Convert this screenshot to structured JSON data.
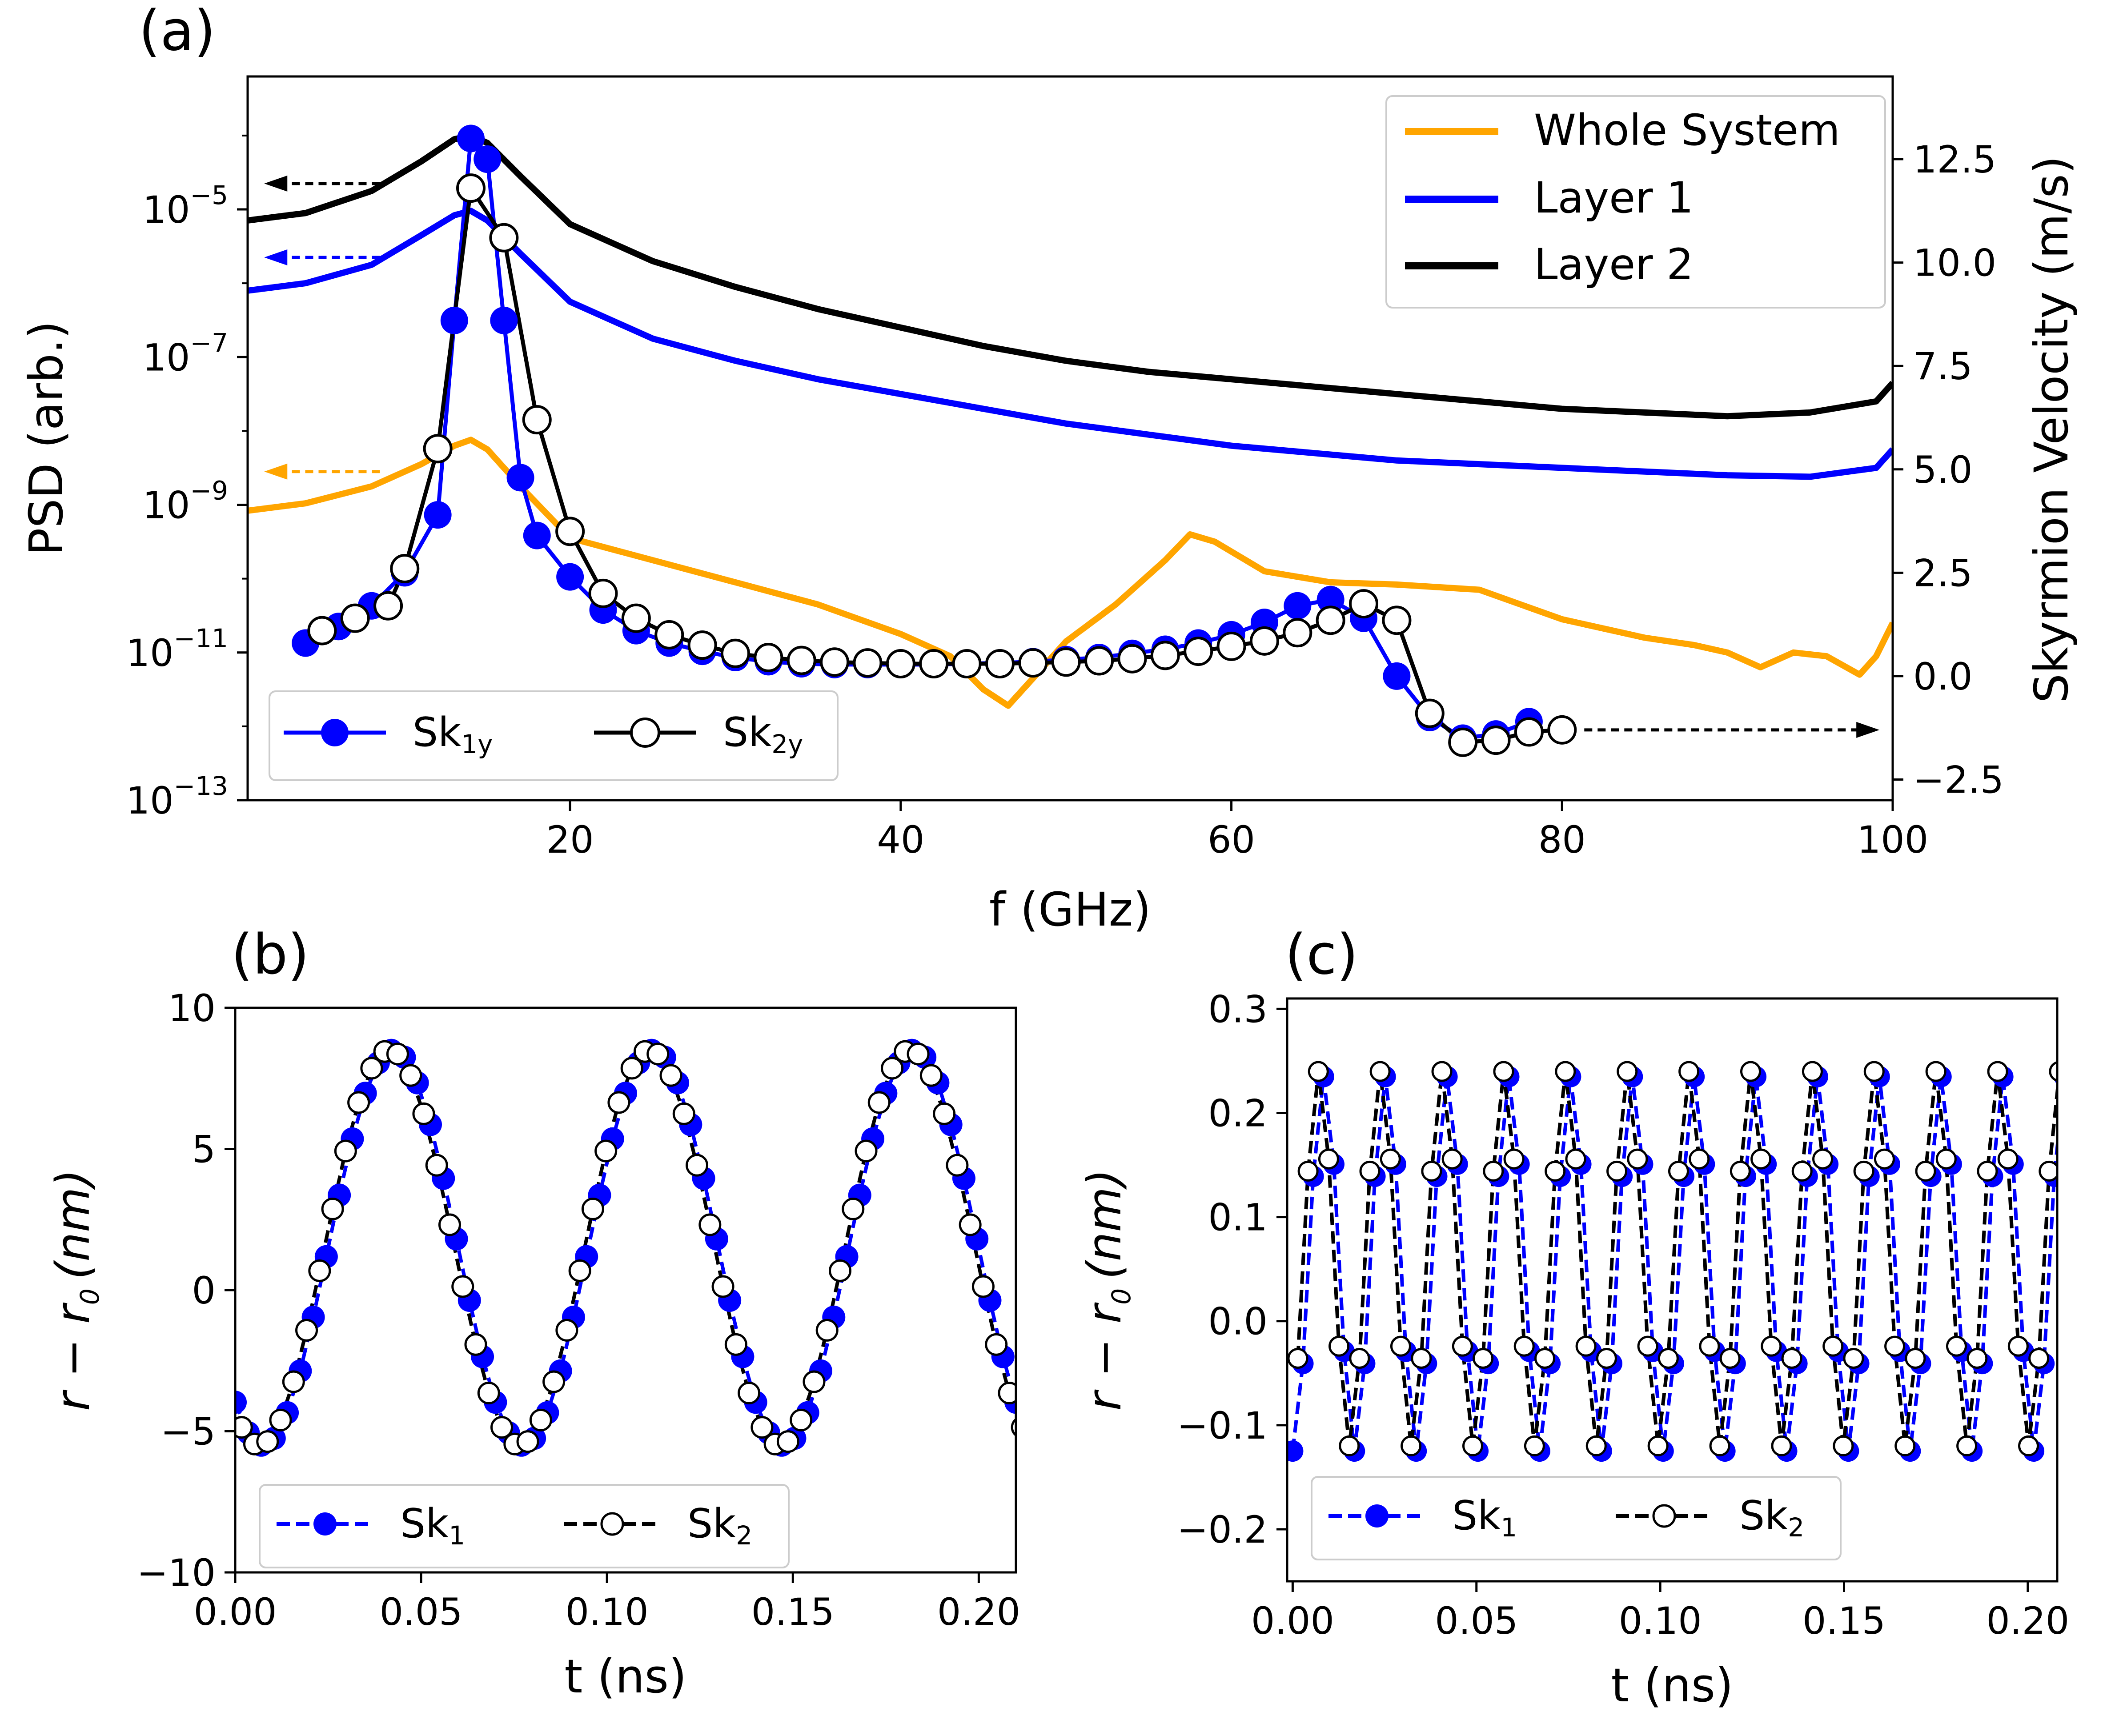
{
  "chart_data": [
    {
      "id": "a",
      "panel_label": "(a)",
      "type": "line",
      "xlabel": "f (GHz)",
      "ylabel_left": "PSD (arb.)",
      "ylabel_right": "Skyrmion Velocity (m/s)",
      "xlim": [
        0.5,
        100
      ],
      "ylim_left_log10": [
        -13,
        -3.2
      ],
      "ylim_right": [
        -3.0,
        14.5
      ],
      "x_ticks": [
        "20",
        "40",
        "60",
        "80",
        "100"
      ],
      "x_tick_values": [
        20,
        40,
        60,
        80,
        100
      ],
      "y_left_ticks": [
        "10",
        "10",
        "10",
        "10",
        "10"
      ],
      "y_left_tick_exponents": [
        "−5",
        "−7",
        "−9",
        "−11",
        "−13"
      ],
      "y_left_tick_values": [
        -5,
        -7,
        -9,
        -11,
        -13
      ],
      "y_right_ticks": [
        "12.5",
        "10.0",
        "7.5",
        "5.0",
        "2.5",
        "0.0",
        "−2.5"
      ],
      "y_right_tick_values": [
        12.5,
        10.0,
        7.5,
        5.0,
        2.5,
        0.0,
        -2.5
      ],
      "psd_series": [
        {
          "name": "Whole System",
          "color": "#ffa500",
          "x": [
            0.5,
            4,
            8,
            11,
            13,
            14,
            15,
            17,
            20,
            25,
            30,
            35,
            40,
            43,
            45,
            46.5,
            48,
            50,
            53,
            56,
            57.5,
            59,
            62,
            66,
            70,
            75,
            80,
            85,
            88,
            90,
            92,
            94,
            96,
            98,
            99,
            100
          ],
          "log10_psd": [
            -9.08,
            -8.98,
            -8.75,
            -8.45,
            -8.2,
            -8.12,
            -8.25,
            -8.75,
            -9.45,
            -9.75,
            -10.05,
            -10.35,
            -10.75,
            -11.05,
            -11.5,
            -11.72,
            -11.35,
            -10.85,
            -10.35,
            -9.75,
            -9.4,
            -9.5,
            -9.9,
            -10.05,
            -10.08,
            -10.15,
            -10.55,
            -10.8,
            -10.9,
            -11.0,
            -11.2,
            -11.0,
            -11.05,
            -11.3,
            -11.05,
            -10.6
          ],
          "arrow_y_log10": -8.55
        },
        {
          "name": "Layer 1",
          "color": "#0000ff",
          "x": [
            0.5,
            4,
            8,
            11,
            13,
            14,
            15,
            17,
            20,
            25,
            30,
            35,
            40,
            45,
            50,
            55,
            60,
            65,
            70,
            75,
            80,
            85,
            90,
            95,
            99,
            100
          ],
          "log10_psd": [
            -6.1,
            -6.0,
            -5.75,
            -5.35,
            -5.08,
            -5.02,
            -5.15,
            -5.6,
            -6.25,
            -6.75,
            -7.05,
            -7.3,
            -7.5,
            -7.7,
            -7.9,
            -8.05,
            -8.2,
            -8.3,
            -8.4,
            -8.45,
            -8.5,
            -8.55,
            -8.6,
            -8.62,
            -8.5,
            -8.25
          ],
          "arrow_y_log10": -5.65
        },
        {
          "name": "Layer 2",
          "color": "#000000",
          "x": [
            0.5,
            4,
            8,
            11,
            13,
            14,
            15,
            17,
            20,
            25,
            30,
            35,
            40,
            45,
            50,
            55,
            60,
            65,
            70,
            75,
            80,
            85,
            90,
            95,
            99,
            100
          ],
          "log10_psd": [
            -5.15,
            -5.05,
            -4.75,
            -4.35,
            -4.05,
            -4.0,
            -4.1,
            -4.55,
            -5.2,
            -5.7,
            -6.05,
            -6.35,
            -6.6,
            -6.85,
            -7.05,
            -7.2,
            -7.3,
            -7.4,
            -7.5,
            -7.6,
            -7.7,
            -7.75,
            -7.8,
            -7.75,
            -7.6,
            -7.35
          ],
          "arrow_y_log10": -4.65
        }
      ],
      "velocity_series": [
        {
          "name": "Sk1y",
          "legend_main": "Sk",
          "legend_sub": "1y",
          "color": "#0000ff",
          "marker": "filled",
          "x": [
            4,
            6,
            8,
            10,
            12,
            13,
            14,
            15,
            16,
            17,
            18,
            20,
            22,
            24,
            26,
            28,
            30,
            32,
            34,
            36,
            38,
            40,
            42,
            44,
            46,
            48,
            50,
            52,
            54,
            56,
            58,
            60,
            62,
            64,
            66,
            68,
            70,
            72,
            74,
            76,
            78
          ],
          "y": [
            0.8,
            1.2,
            1.7,
            2.5,
            3.9,
            8.6,
            13.0,
            12.5,
            8.6,
            4.8,
            3.4,
            2.4,
            1.6,
            1.1,
            0.8,
            0.6,
            0.45,
            0.35,
            0.3,
            0.28,
            0.28,
            0.28,
            0.28,
            0.3,
            0.32,
            0.35,
            0.4,
            0.45,
            0.55,
            0.65,
            0.8,
            1.0,
            1.3,
            1.7,
            1.85,
            1.4,
            0.0,
            -1.0,
            -1.5,
            -1.4,
            -1.1
          ]
        },
        {
          "name": "Sk2y",
          "legend_main": "Sk",
          "legend_sub": "2y",
          "color": "#000000",
          "marker": "open",
          "x": [
            5,
            7,
            9,
            10,
            12,
            14,
            16,
            18,
            20,
            22,
            24,
            26,
            28,
            30,
            32,
            34,
            36,
            38,
            40,
            42,
            44,
            46,
            48,
            50,
            52,
            54,
            56,
            58,
            60,
            62,
            64,
            66,
            68,
            70,
            72,
            74,
            76,
            78,
            80
          ],
          "y": [
            1.1,
            1.4,
            1.7,
            2.6,
            5.5,
            11.8,
            10.6,
            6.2,
            3.5,
            2.0,
            1.4,
            1.0,
            0.75,
            0.55,
            0.45,
            0.38,
            0.34,
            0.32,
            0.3,
            0.3,
            0.3,
            0.3,
            0.32,
            0.34,
            0.37,
            0.42,
            0.5,
            0.6,
            0.72,
            0.85,
            1.05,
            1.35,
            1.75,
            1.35,
            -0.9,
            -1.6,
            -1.55,
            -1.35,
            -1.3
          ],
          "arrow_y": -1.3
        }
      ]
    },
    {
      "id": "b",
      "panel_label": "(b)",
      "type": "line",
      "xlabel": "t (ns)",
      "ylabel": "r − r",
      "ylabel_sub": "0",
      "ylabel_unit": "(nm)",
      "xlim": [
        0.0,
        0.21
      ],
      "ylim": [
        -10,
        10
      ],
      "x_ticks": [
        "0.00",
        "0.05",
        "0.10",
        "0.15",
        "0.20"
      ],
      "x_tick_values": [
        0.0,
        0.05,
        0.1,
        0.15,
        0.2
      ],
      "y_ticks": [
        "10",
        "5",
        "0",
        "−5",
        "−10"
      ],
      "y_tick_values": [
        10,
        5,
        0,
        -5,
        -10
      ],
      "series": [
        {
          "name": "Sk1",
          "legend_main": "Sk",
          "legend_sub": "1",
          "color": "#0000ff",
          "marker": "filled",
          "center": 1.5,
          "amplitude": 7.0,
          "period": 0.07,
          "t_peak": 0.0425,
          "dt": 0.0035
        },
        {
          "name": "Sk2",
          "legend_main": "Sk",
          "legend_sub": "2",
          "color": "#000000",
          "marker": "open",
          "center": 1.5,
          "amplitude": 7.0,
          "period": 0.07,
          "t_peak": 0.0415,
          "dt": 0.0035,
          "t_offset": 0.0017
        }
      ]
    },
    {
      "id": "c",
      "panel_label": "(c)",
      "type": "line",
      "xlabel": "t (ns)",
      "ylabel": "r − r",
      "ylabel_sub": "0",
      "ylabel_unit": "(nm)",
      "xlim": [
        -0.0015,
        0.208
      ],
      "ylim": [
        -0.25,
        0.31
      ],
      "x_ticks": [
        "0.00",
        "0.05",
        "0.10",
        "0.15",
        "0.20"
      ],
      "x_tick_values": [
        0.0,
        0.05,
        0.1,
        0.15,
        0.2
      ],
      "y_ticks": [
        "0.3",
        "0.2",
        "0.1",
        "0.0",
        "−0.1",
        "−0.2"
      ],
      "y_tick_values": [
        0.3,
        0.2,
        0.1,
        0.0,
        -0.1,
        -0.2
      ],
      "series": [
        {
          "name": "Sk1",
          "legend_main": "Sk",
          "legend_sub": "1",
          "color": "#0000ff",
          "marker": "filled",
          "center": 0.055,
          "amplitude": 0.18,
          "period": 0.0168,
          "t_peak": 0.0085,
          "dt": 0.0028
        },
        {
          "name": "Sk2",
          "legend_main": "Sk",
          "legend_sub": "2",
          "color": "#000000",
          "marker": "open",
          "center": 0.06,
          "amplitude": 0.18,
          "period": 0.0168,
          "t_peak": 0.0071,
          "dt": 0.0028,
          "t_offset": 0.0014
        }
      ]
    }
  ],
  "legends": {
    "a_psd": [
      "Whole System",
      "Layer 1",
      "Layer 2"
    ]
  }
}
